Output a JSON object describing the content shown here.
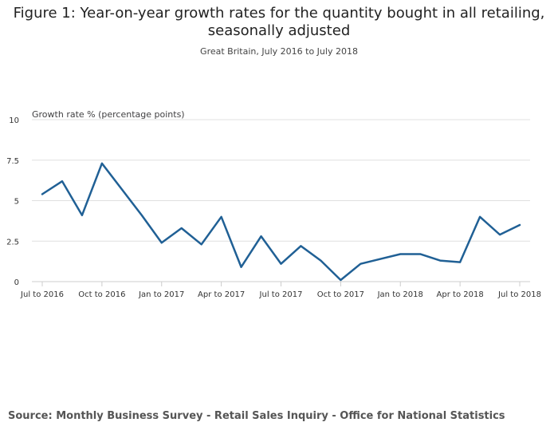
{
  "chart_data": {
    "type": "line",
    "title_line1": "Figure 1: Year-on-year growth rates for the quantity bought in all retailing,",
    "title_line2": "seasonally adjusted",
    "subtitle": "Great Britain, July 2016 to July 2018",
    "ylabel": "Growth rate % (percentage points)",
    "xlabel": "",
    "ylim": [
      0,
      10
    ],
    "yticks": [
      "0",
      "2.5",
      "5",
      "7.5",
      "10"
    ],
    "ytick_values": [
      0,
      2.5,
      5,
      7.5,
      10
    ],
    "xtick_labels": [
      "Jul to 2016",
      "Oct to 2016",
      "Jan to 2017",
      "Apr to 2017",
      "Jul to 2017",
      "Oct to 2017",
      "Jan to 2018",
      "Apr to 2018",
      "Jul to 2018"
    ],
    "grid": true,
    "series": [
      {
        "color": "#206095",
        "values": [
          5.4,
          6.2,
          4.1,
          7.3,
          5.7,
          4.1,
          2.4,
          3.3,
          2.3,
          4.0,
          0.9,
          2.8,
          1.1,
          2.2,
          1.3,
          0.1,
          1.1,
          1.4,
          1.7,
          1.7,
          1.3,
          1.2,
          4.0,
          2.9,
          3.5
        ]
      }
    ]
  },
  "source": "Source: Monthly Business Survey - Retail Sales Inquiry - Office for National Statistics",
  "colors": {
    "line": "#206095",
    "grid": "#e0e0e0",
    "axis": "#cccccc"
  }
}
